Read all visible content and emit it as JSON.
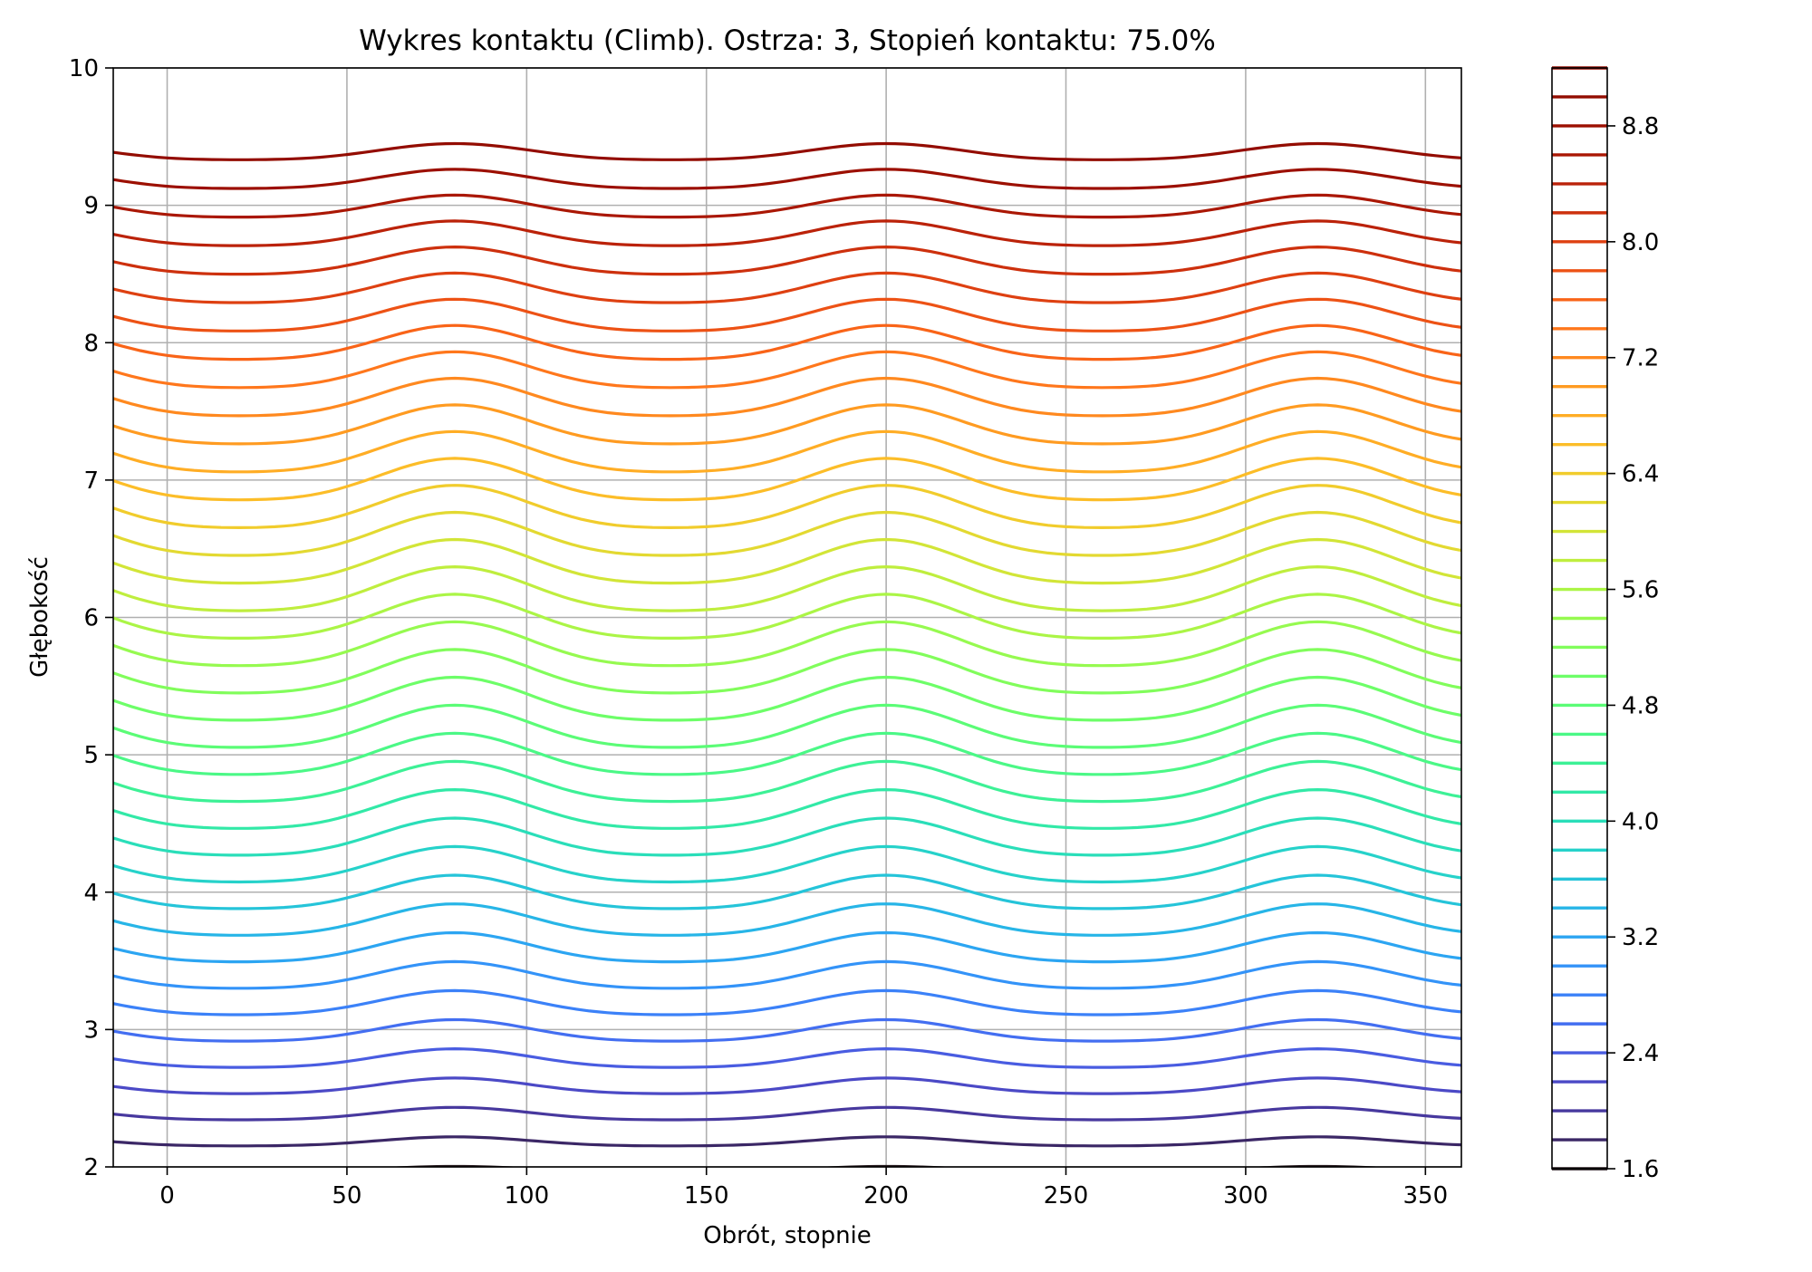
{
  "chart_data": {
    "type": "contour",
    "title": "Wykres kontaktu (Climb). Ostrza: 3, Stopień kontaktu: 75.0%",
    "xlabel": "Obrót, stopnie",
    "ylabel": "Głębokość",
    "xlim": [
      -15,
      360
    ],
    "ylim": [
      2,
      10
    ],
    "x_ticks": [
      0,
      50,
      100,
      150,
      200,
      250,
      300,
      350
    ],
    "y_ticks": [
      2,
      3,
      4,
      5,
      6,
      7,
      8,
      9,
      10
    ],
    "grid": true,
    "colorbar": {
      "range": [
        1.6,
        9.2
      ],
      "levels_step": 0.2,
      "ticks": [
        1.6,
        2.4,
        3.2,
        4.0,
        4.8,
        5.6,
        6.4,
        7.2,
        8.0,
        8.8
      ],
      "tick_labels": [
        "1.6",
        "2.4",
        "3.2",
        "4.0",
        "4.8",
        "5.6",
        "6.4",
        "7.2",
        "8.0",
        "8.8"
      ],
      "colormap": "turbo"
    },
    "contours": {
      "level_start": 1.6,
      "level_step": 0.2,
      "level_count": 38,
      "depth_at_lowest_level": 1.98,
      "depth_per_level": 0.2,
      "period_degrees": 120,
      "peak_angle_degrees": 80,
      "amplitude_max": 0.14,
      "amplitude_note": "contour waviness largest at mid depths (~5), smaller near 2 and 10"
    }
  }
}
